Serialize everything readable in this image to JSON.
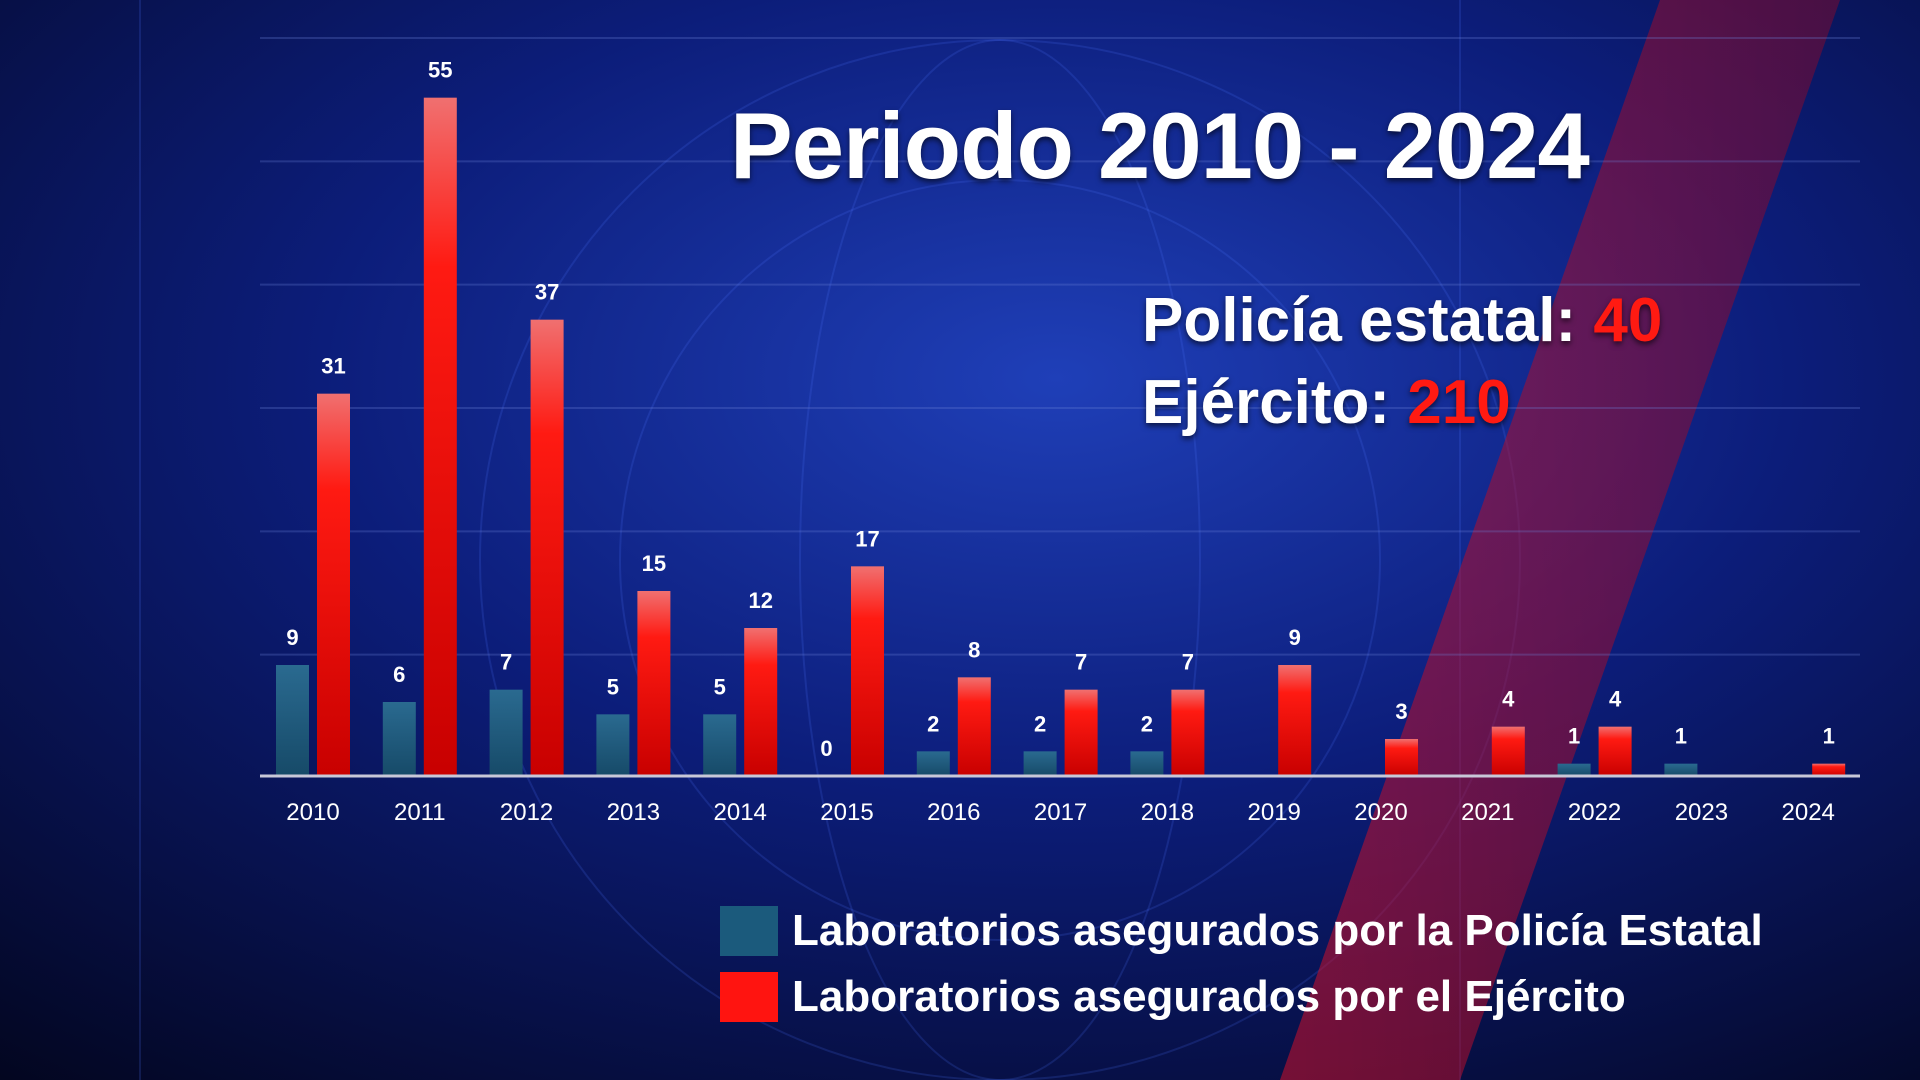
{
  "title": "Periodo 2010 - 2024",
  "totals": [
    {
      "label": "Policía estatal:",
      "value": "40"
    },
    {
      "label": "Ejército:",
      "value": "210"
    }
  ],
  "colors": {
    "policia": "#1b5a7c",
    "ejercito": "#ff1410",
    "ejercito_dark": "#c00000",
    "highlight": "#ff1a12",
    "text": "#ffffff"
  },
  "legend": [
    {
      "label": "Laboratorios asegurados por la Policía Estatal",
      "color": "#1b5a7c"
    },
    {
      "label": "Laboratorios asegurados por el Ejército",
      "color": "#ff1410"
    }
  ],
  "chart_data": {
    "type": "bar",
    "title": "Periodo 2010 - 2024",
    "xlabel": "",
    "ylabel": "",
    "categories": [
      "2010",
      "2011",
      "2012",
      "2013",
      "2014",
      "2015",
      "2016",
      "2017",
      "2018",
      "2019",
      "2020",
      "2021",
      "2022",
      "2023",
      "2024"
    ],
    "series": [
      {
        "name": "Laboratorios asegurados por la Policía Estatal",
        "values": [
          9,
          6,
          7,
          5,
          5,
          0,
          2,
          2,
          2,
          null,
          null,
          null,
          1,
          1,
          null
        ],
        "labels": [
          "9",
          "6",
          "7",
          "5",
          "5",
          "0",
          "2",
          "2",
          "2",
          "",
          "",
          "",
          "1",
          "1",
          ""
        ]
      },
      {
        "name": "Laboratorios asegurados por el Ejército",
        "values": [
          31,
          55,
          37,
          15,
          12,
          17,
          8,
          7,
          7,
          9,
          3,
          4,
          4,
          null,
          1
        ],
        "labels": [
          "31",
          "55",
          "37",
          "15",
          "12",
          "17",
          "8",
          "7",
          "7",
          "9",
          "3",
          "4",
          "4",
          "",
          "1"
        ]
      }
    ],
    "ylim": [
      0,
      60
    ],
    "grid": true,
    "legend_position": "bottom-right"
  }
}
